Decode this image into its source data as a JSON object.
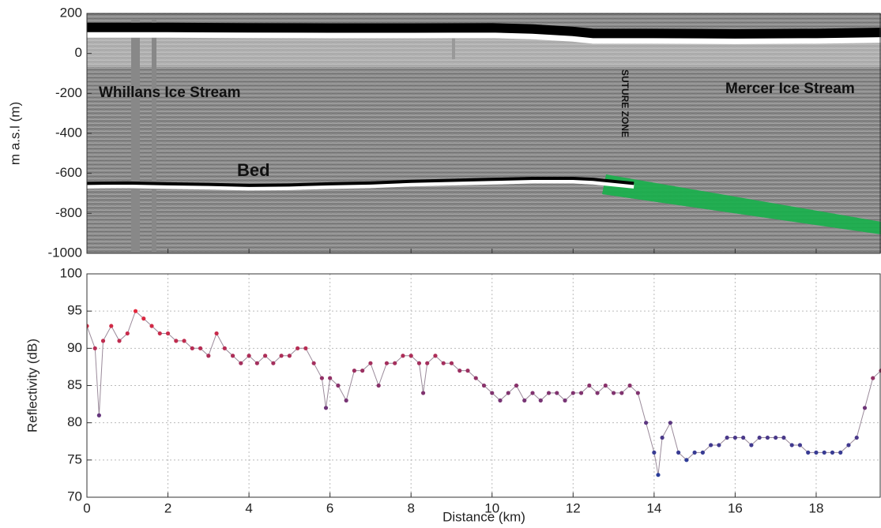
{
  "chart_data": [
    {
      "type": "radargram",
      "ylabel": "m a.s.l (m)",
      "xlim": [
        0,
        19.6
      ],
      "xticks": [
        0,
        2,
        4,
        6,
        8,
        10,
        12,
        14,
        16,
        18
      ],
      "ylim": [
        -1000,
        200
      ],
      "yticks": [
        200,
        0,
        -200,
        -400,
        -600,
        -800,
        -1000
      ],
      "annotations": [
        "Whillans Ice Stream",
        "Mercer Ice Stream",
        "SUTURE ZONE",
        "Bed"
      ],
      "series": [
        {
          "color": "#000000",
          "x": [
            0,
            2,
            4,
            6,
            8,
            10,
            11,
            12,
            12.5,
            14,
            16,
            18,
            19.6
          ],
          "values": [
            130,
            130,
            128,
            127,
            127,
            128,
            122,
            110,
            100,
            100,
            98,
            100,
            105
          ]
        },
        {
          "color": "#000000",
          "x": [
            0,
            1,
            2,
            3,
            4,
            5,
            6,
            7,
            8,
            9,
            10,
            11,
            12,
            12.5,
            13.5
          ],
          "values": [
            -650,
            -648,
            -652,
            -655,
            -660,
            -658,
            -652,
            -648,
            -640,
            -635,
            -630,
            -625,
            -625,
            -630,
            -650
          ]
        }
      ]
    },
    {
      "type": "line",
      "xlabel": "Distance (km)",
      "ylabel": "Reflectivity (dB)",
      "xlim": [
        0,
        19.6
      ],
      "xticks": [
        0,
        2,
        4,
        6,
        8,
        10,
        12,
        14,
        16,
        18
      ],
      "ylim": [
        70,
        100
      ],
      "yticks": [
        70,
        75,
        80,
        85,
        90,
        95,
        100
      ],
      "grid": true,
      "color_low": "#2a3d9a",
      "color_high": "#e8273b",
      "x": [
        0,
        0.2,
        0.3,
        0.4,
        0.6,
        0.8,
        1.0,
        1.2,
        1.4,
        1.6,
        1.8,
        2.0,
        2.2,
        2.4,
        2.6,
        2.8,
        3.0,
        3.2,
        3.4,
        3.6,
        3.8,
        4.0,
        4.2,
        4.4,
        4.6,
        4.8,
        5.0,
        5.2,
        5.4,
        5.6,
        5.8,
        5.9,
        6.0,
        6.2,
        6.4,
        6.6,
        6.8,
        7.0,
        7.2,
        7.4,
        7.6,
        7.8,
        8.0,
        8.2,
        8.3,
        8.4,
        8.6,
        8.8,
        9.0,
        9.2,
        9.4,
        9.6,
        9.8,
        10.0,
        10.2,
        10.4,
        10.6,
        10.8,
        11.0,
        11.2,
        11.4,
        11.6,
        11.8,
        12.0,
        12.2,
        12.4,
        12.6,
        12.8,
        13.0,
        13.2,
        13.4,
        13.6,
        13.8,
        14.0,
        14.1,
        14.2,
        14.4,
        14.6,
        14.8,
        15.0,
        15.2,
        15.4,
        15.6,
        15.8,
        16.0,
        16.2,
        16.4,
        16.6,
        16.8,
        17.0,
        17.2,
        17.4,
        17.6,
        17.8,
        18.0,
        18.2,
        18.4,
        18.6,
        18.8,
        19.0,
        19.2,
        19.4,
        19.6
      ],
      "values": [
        93,
        90,
        81,
        91,
        93,
        91,
        92,
        95,
        94,
        93,
        92,
        92,
        91,
        91,
        90,
        90,
        89,
        92,
        90,
        89,
        88,
        89,
        88,
        89,
        88,
        89,
        89,
        90,
        90,
        88,
        86,
        82,
        86,
        85,
        83,
        87,
        87,
        88,
        85,
        88,
        88,
        89,
        89,
        88,
        84,
        88,
        89,
        88,
        88,
        87,
        87,
        86,
        85,
        84,
        83,
        84,
        85,
        83,
        84,
        83,
        84,
        84,
        83,
        84,
        84,
        85,
        84,
        85,
        84,
        84,
        85,
        84,
        80,
        76,
        73,
        78,
        80,
        76,
        75,
        76,
        76,
        77,
        77,
        78,
        78,
        78,
        77,
        78,
        78,
        78,
        78,
        77,
        77,
        76,
        76,
        76,
        76,
        76,
        77,
        78,
        82,
        86,
        87
      ]
    }
  ]
}
